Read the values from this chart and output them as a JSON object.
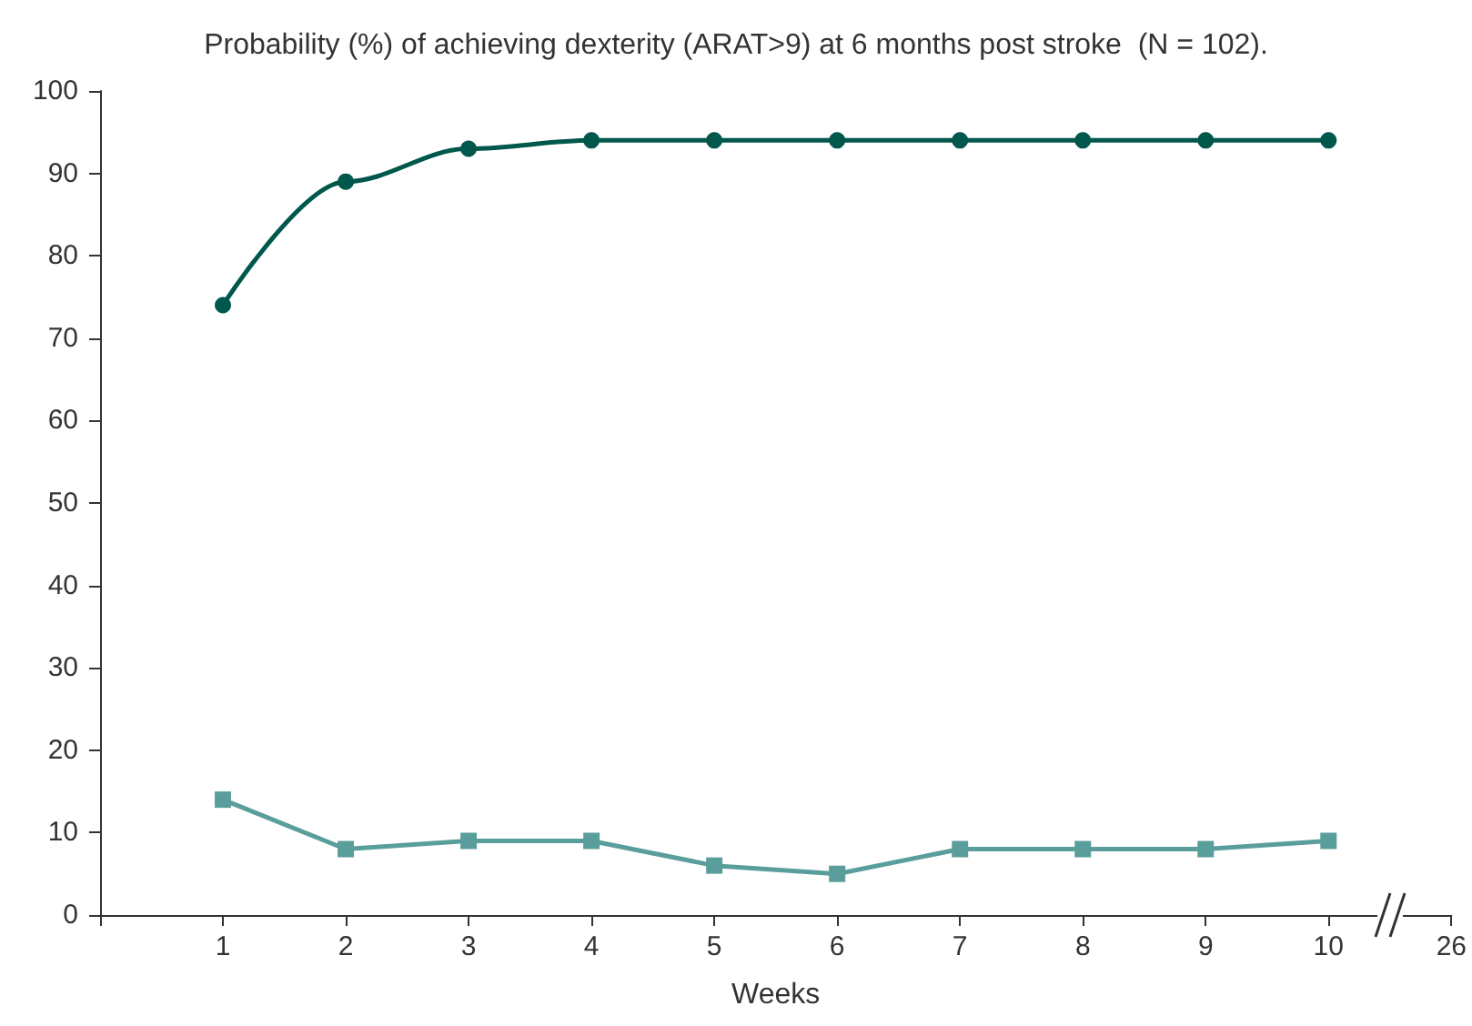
{
  "chart_data": {
    "type": "line",
    "title": "Probability (%) of achieving dexterity (ARAT>9) at 6 months post stroke  (N = 102).",
    "xlabel": "Weeks",
    "categories": [
      null,
      "1",
      "2",
      "3",
      "4",
      "5",
      "6",
      "7",
      "8",
      "9",
      "10",
      "26"
    ],
    "series": [
      {
        "color": "#00574b",
        "marker": "circle",
        "values": [
          null,
          74,
          89,
          93,
          94,
          94,
          94,
          94,
          94,
          94,
          94,
          null
        ]
      },
      {
        "color": "#5a9e9c",
        "marker": "square",
        "values": [
          null,
          14,
          8,
          9,
          9,
          6,
          5,
          8,
          8,
          8,
          9,
          null
        ]
      }
    ],
    "ylim": [
      0,
      100
    ],
    "yticks": [
      0,
      10,
      20,
      30,
      40,
      50,
      60,
      70,
      80,
      90,
      100
    ],
    "grid": false
  }
}
